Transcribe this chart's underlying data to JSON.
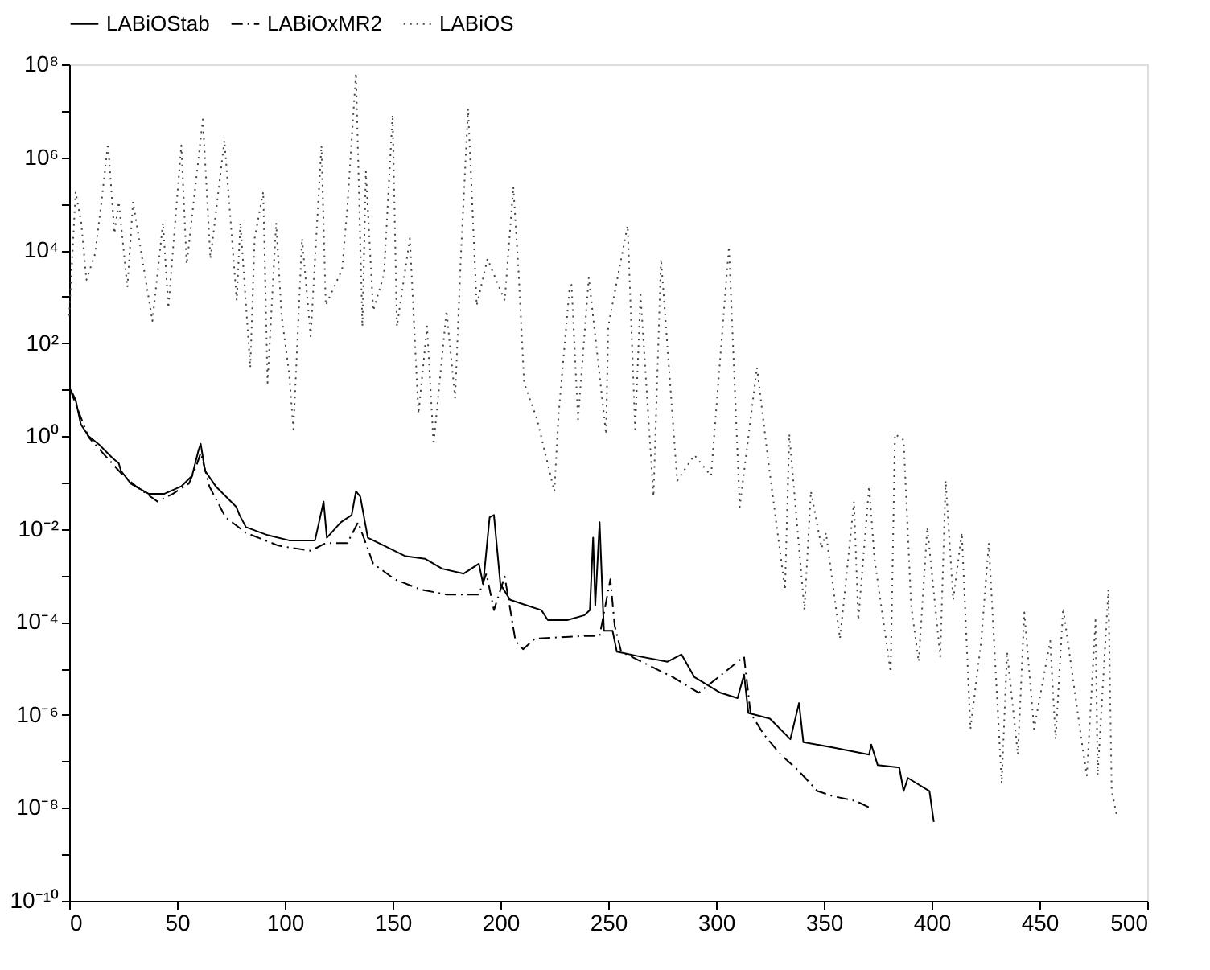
{
  "chart_data": {
    "type": "line",
    "log": "y",
    "grid": false,
    "legend": "top",
    "marker": "none",
    "xlim": [
      0,
      500
    ],
    "xticks": [
      0,
      50,
      100,
      150,
      200,
      250,
      300,
      350,
      400,
      450,
      500
    ],
    "ylim": [
      1e-10,
      100000000.0
    ],
    "yticks": [
      {
        "value": 1e-10,
        "label": "10⁻¹⁰"
      },
      {
        "value": 1e-09,
        "label": null
      },
      {
        "value": 1e-08,
        "label": "10⁻⁸"
      },
      {
        "value": 1e-07,
        "label": null
      },
      {
        "value": 1e-06,
        "label": "10⁻⁶"
      },
      {
        "value": 1e-05,
        "label": null
      },
      {
        "value": 0.0001,
        "label": "10⁻⁴"
      },
      {
        "value": 0.001,
        "label": null
      },
      {
        "value": 0.01,
        "label": "10⁻²"
      },
      {
        "value": 0.1,
        "label": null
      },
      {
        "value": 1,
        "label": "10⁰"
      },
      {
        "value": 10,
        "label": null
      },
      {
        "value": 100,
        "label": "10²"
      },
      {
        "value": 1000,
        "label": null
      },
      {
        "value": 10000.0,
        "label": "10⁴"
      },
      {
        "value": 100000.0,
        "label": null
      },
      {
        "value": 1000000.0,
        "label": "10⁶"
      },
      {
        "value": 10000000.0,
        "label": null
      },
      {
        "value": 100000000.0,
        "label": "10⁸"
      }
    ],
    "series": [
      {
        "name": "LABiOStab",
        "color": "#000000",
        "line_style": "solid",
        "x": [
          0.5,
          1.7,
          3,
          5.4,
          9,
          14,
          20,
          23,
          24,
          28.6,
          37,
          44,
          52,
          57,
          60,
          61,
          63,
          68,
          77.5,
          79,
          82,
          92,
          102,
          114,
          118,
          119.5,
          126,
          131,
          133,
          135,
          138.5,
          146,
          156,
          165,
          173,
          183,
          190,
          192,
          195,
          197,
          200,
          204.5,
          212,
          219,
          222,
          231,
          239,
          241.5,
          243,
          244,
          246,
          248,
          252,
          254,
          265,
          277.5,
          284,
          290,
          302,
          310,
          313,
          315,
          325,
          334.5,
          338.5,
          340.5,
          354,
          371,
          372,
          375,
          385,
          387,
          389,
          399,
          401
        ],
        "values": [
          10,
          8,
          6,
          1.8,
          1,
          0.65,
          0.34,
          0.26,
          0.18,
          0.095,
          0.057,
          0.057,
          0.083,
          0.14,
          0.5,
          0.68,
          0.18,
          0.083,
          0.03,
          0.02,
          0.011,
          0.0074,
          0.0057,
          0.0057,
          0.039,
          0.0065,
          0.014,
          0.02,
          0.065,
          0.05,
          0.0065,
          0.0044,
          0.0026,
          0.0023,
          0.0014,
          0.0011,
          0.0018,
          0.00065,
          0.018,
          0.02,
          0.00065,
          0.0003,
          0.00023,
          0.00018,
          0.00011,
          0.00011,
          0.00014,
          0.00018,
          0.0065,
          0.00023,
          0.014,
          6.5e-05,
          6.5e-05,
          2.3e-05,
          1.8e-05,
          1.4e-05,
          2e-05,
          6.5e-06,
          3e-06,
          2.3e-06,
          7.4e-06,
          1.1e-06,
          8.3e-07,
          3e-07,
          1.8e-06,
          2.6e-07,
          2e-07,
          1.4e-07,
          2.3e-07,
          8.3e-08,
          7.4e-08,
          2.3e-08,
          4.4e-08,
          2.3e-08,
          5e-09
        ]
      },
      {
        "name": "LABiOxMR2",
        "color": "#000000",
        "line_style": "dashdot",
        "x": [
          0.5,
          6.6,
          9,
          24,
          31,
          41,
          48,
          55.5,
          59,
          61,
          65,
          72.5,
          82,
          97,
          112,
          119,
          129,
          134,
          141,
          151,
          163,
          175,
          190,
          193.5,
          197,
          202,
          207,
          210.5,
          216,
          239,
          246,
          251,
          253,
          256,
          280,
          292,
          313,
          316,
          322,
          330,
          338,
          347,
          354,
          365,
          372.5
        ],
        "values": [
          10,
          1.8,
          0.95,
          0.16,
          0.083,
          0.039,
          0.057,
          0.095,
          0.23,
          0.44,
          0.083,
          0.018,
          0.0083,
          0.0044,
          0.0034,
          0.005,
          0.005,
          0.014,
          0.0018,
          0.00083,
          0.0005,
          0.00039,
          0.00039,
          0.0011,
          0.00018,
          0.00095,
          3.9e-05,
          2.6e-05,
          4.4e-05,
          5e-05,
          5e-05,
          0.00083,
          8.3e-05,
          2.3e-05,
          6.5e-06,
          3e-06,
          1.8e-05,
          1.1e-06,
          3.9e-07,
          1.4e-07,
          6.5e-08,
          2.3e-08,
          1.8e-08,
          1.4e-08,
          9.5e-09
        ]
      },
      {
        "name": "LABiOS",
        "color": "#444444",
        "line_style": "dotted",
        "x": [
          0,
          3,
          5.6,
          8,
          12,
          15,
          18,
          21,
          23,
          27,
          29.6,
          38.6,
          43.5,
          46,
          52,
          54.5,
          62,
          65.5,
          72,
          77.7,
          79.4,
          84,
          86,
          90,
          92,
          96,
          98.5,
          102,
          104,
          108,
          112,
          117,
          119,
          126.6,
          129,
          133,
          136,
          137.6,
          141,
          146,
          150,
          152,
          158,
          162,
          166,
          169,
          175,
          179,
          181.6,
          185,
          189,
          194,
          202,
          206,
          208.5,
          211,
          217,
          225,
          227,
          232,
          233,
          236,
          241,
          249,
          250,
          259,
          262.5,
          265,
          271,
          274.5,
          282,
          290,
          297.7,
          306,
          311,
          319,
          324.5,
          332,
          334,
          341,
          344,
          349,
          351,
          357.5,
          364,
          366,
          371,
          373.5,
          381,
          383,
          387,
          390.5,
          394,
          398,
          404,
          406.5,
          410,
          414,
          418,
          423,
          426.5,
          432.5,
          435,
          440,
          443,
          447.5,
          455,
          457.5,
          461,
          470,
          472,
          476,
          477,
          482,
          483.5,
          486
        ],
        "values": [
          390,
          180000.0,
          39000.0,
          2300,
          8300,
          110000.0,
          2000000.0,
          23000.0,
          110000.0,
          1600,
          110000.0,
          300,
          39000.0,
          570,
          1800000.0,
          5000,
          6500000.0,
          6500,
          2300000.0,
          830,
          39000.0,
          30,
          18000.0,
          180000.0,
          14,
          39000.0,
          390,
          23,
          1.4,
          18000.0,
          140,
          1800000.0,
          650,
          3900,
          83000.0,
          65000000.0,
          230,
          500000.0,
          500,
          3000,
          8300000.0,
          230,
          18000.0,
          3,
          230,
          0.65,
          500,
          6.5,
          6500,
          11000000.0,
          650,
          6500,
          830,
          230000.0,
          3000,
          14,
          2.3,
          0.065,
          3,
          1400,
          1800,
          2.3,
          2600,
          1.1,
          230,
          34000.0,
          1.4,
          1100,
          0.05,
          6500,
          0.11,
          0.39,
          0.14,
          12000.0,
          0.03,
          30,
          0.23,
          0.0005,
          1.1,
          0.00018,
          0.065,
          0.0039,
          0.0083,
          4.4e-05,
          0.039,
          0.00011,
          0.083,
          0.0023,
          8.3e-06,
          1.1,
          0.83,
          0.00023,
          1.4e-05,
          0.011,
          1.8e-05,
          0.11,
          0.0003,
          0.0083,
          5e-07,
          3.9e-05,
          0.005,
          3.4e-08,
          2.3e-05,
          1.4e-07,
          0.00016,
          5e-07,
          3.9e-05,
          3e-07,
          0.0002,
          2e-07,
          5e-08,
          0.00011,
          5e-08,
          0.0005,
          2.3e-08,
          6.5e-09
        ]
      }
    ]
  }
}
